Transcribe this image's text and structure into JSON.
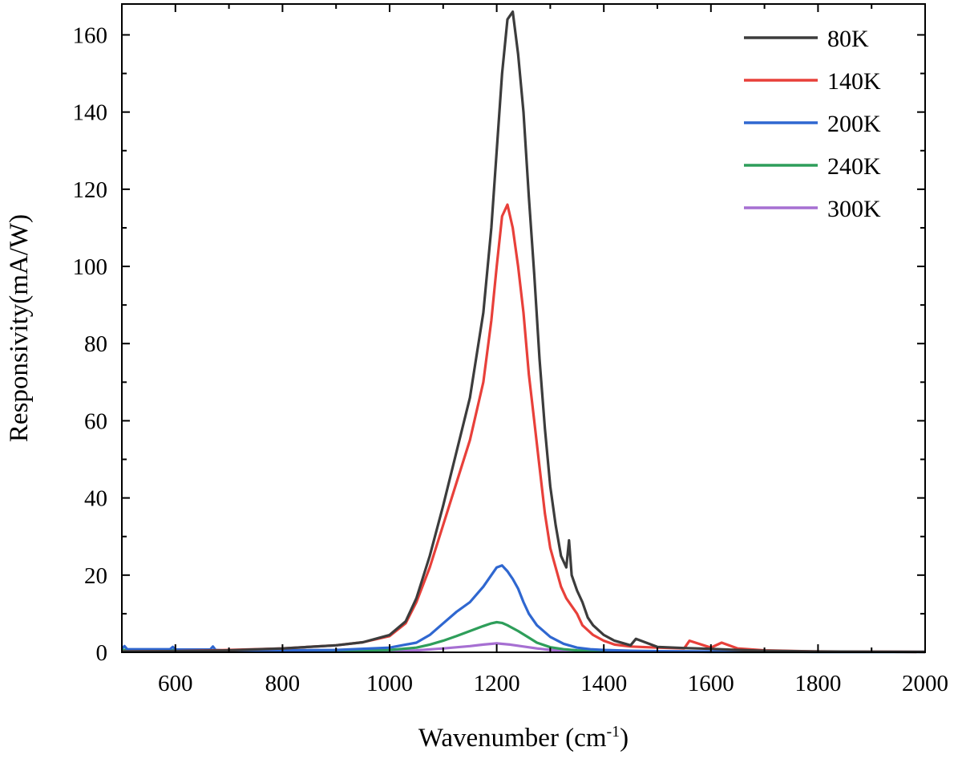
{
  "chart_data": {
    "type": "line",
    "xlabel": "Wavenumber (cm",
    "xlabel_sup": "-1",
    "xlabel_close": ")",
    "ylabel": "Responsivity(mA/W)",
    "xlim": [
      500,
      2000
    ],
    "ylim": [
      0,
      168
    ],
    "xticks": [
      "600",
      "800",
      "1000",
      "1200",
      "1400",
      "1600",
      "1800",
      "2000"
    ],
    "yticks": [
      "0",
      "20",
      "40",
      "60",
      "80",
      "100",
      "120",
      "140",
      "160"
    ],
    "legend_position": "top-right",
    "grid": false,
    "series": [
      {
        "name": "80K",
        "color": "#3c3c3c",
        "x": [
          500,
          600,
          700,
          800,
          900,
          950,
          1000,
          1030,
          1050,
          1075,
          1100,
          1125,
          1150,
          1175,
          1190,
          1200,
          1210,
          1220,
          1230,
          1240,
          1250,
          1260,
          1270,
          1280,
          1290,
          1300,
          1310,
          1320,
          1330,
          1335,
          1340,
          1350,
          1360,
          1370,
          1380,
          1400,
          1420,
          1450,
          1460,
          1500,
          1550,
          1600,
          1650,
          1700,
          1800,
          2000
        ],
        "y": [
          0.2,
          0.3,
          0.5,
          1.0,
          1.8,
          2.6,
          4.5,
          8,
          14,
          25,
          38,
          52,
          66,
          88,
          110,
          130,
          150,
          164,
          166,
          155,
          140,
          118,
          98,
          76,
          58,
          43,
          33,
          25,
          22,
          29,
          20,
          16,
          13,
          9,
          7,
          4.5,
          3,
          1.8,
          3.5,
          1.4,
          1.1,
          0.9,
          0.6,
          0.4,
          0.2,
          0.1
        ]
      },
      {
        "name": "140K",
        "color": "#e8403a",
        "x": [
          500,
          600,
          700,
          800,
          900,
          950,
          1000,
          1030,
          1050,
          1075,
          1100,
          1125,
          1150,
          1175,
          1190,
          1200,
          1210,
          1220,
          1230,
          1240,
          1250,
          1260,
          1270,
          1280,
          1290,
          1300,
          1310,
          1320,
          1330,
          1340,
          1350,
          1360,
          1380,
          1400,
          1420,
          1450,
          1500,
          1550,
          1560,
          1600,
          1620,
          1650,
          1700,
          1800,
          2000
        ],
        "y": [
          0.2,
          0.3,
          0.6,
          1.0,
          1.8,
          2.6,
          4.2,
          7.5,
          13,
          22,
          33,
          44,
          55,
          70,
          86,
          100,
          113,
          116,
          110,
          100,
          88,
          72,
          60,
          48,
          36,
          27,
          22,
          17,
          14,
          12,
          10,
          7,
          4.5,
          3,
          2,
          1.5,
          1.2,
          1.0,
          3.0,
          1.2,
          2.5,
          1.0,
          0.5,
          0.2,
          0.1
        ]
      },
      {
        "name": "200K",
        "color": "#2f67d0",
        "x": [
          500,
          505,
          510,
          590,
          595,
          600,
          665,
          670,
          675,
          700,
          800,
          900,
          1000,
          1050,
          1075,
          1100,
          1125,
          1150,
          1175,
          1190,
          1200,
          1210,
          1220,
          1230,
          1240,
          1250,
          1260,
          1275,
          1300,
          1325,
          1350,
          1375,
          1400,
          1450,
          1500,
          1600,
          1700,
          1800,
          2000
        ],
        "y": [
          1.0,
          1.6,
          0.8,
          0.8,
          1.4,
          0.7,
          0.7,
          1.5,
          0.6,
          0.4,
          0.5,
          0.6,
          1.2,
          2.5,
          4.5,
          7.5,
          10.5,
          13,
          17,
          20,
          22,
          22.5,
          21,
          19,
          16.5,
          13,
          10,
          7,
          4,
          2.2,
          1.2,
          0.8,
          0.6,
          0.4,
          0.3,
          0.2,
          0.2,
          0.1,
          0.1
        ]
      },
      {
        "name": "240K",
        "color": "#2e9e5a",
        "x": [
          500,
          600,
          700,
          800,
          900,
          1000,
          1050,
          1075,
          1100,
          1125,
          1150,
          1175,
          1190,
          1200,
          1210,
          1220,
          1240,
          1260,
          1275,
          1300,
          1325,
          1350,
          1400,
          1500,
          1600,
          1800,
          2000
        ],
        "y": [
          0.6,
          0.5,
          0.4,
          0.4,
          0.4,
          0.6,
          1.2,
          2.0,
          3.0,
          4.2,
          5.5,
          6.8,
          7.5,
          7.8,
          7.6,
          7.0,
          5.5,
          3.8,
          2.5,
          1.3,
          0.8,
          0.5,
          0.3,
          0.2,
          0.1,
          0.1,
          0.1
        ]
      },
      {
        "name": "300K",
        "color": "#a66fd2",
        "x": [
          500,
          600,
          700,
          800,
          900,
          1000,
          1050,
          1100,
          1150,
          1175,
          1200,
          1225,
          1250,
          1275,
          1300,
          1350,
          1400,
          1600,
          2000
        ],
        "y": [
          0.2,
          0.2,
          0.2,
          0.2,
          0.2,
          0.3,
          0.5,
          1.0,
          1.6,
          2.0,
          2.3,
          2.0,
          1.5,
          1.0,
          0.6,
          0.3,
          0.2,
          0.1,
          0.1
        ]
      }
    ]
  }
}
